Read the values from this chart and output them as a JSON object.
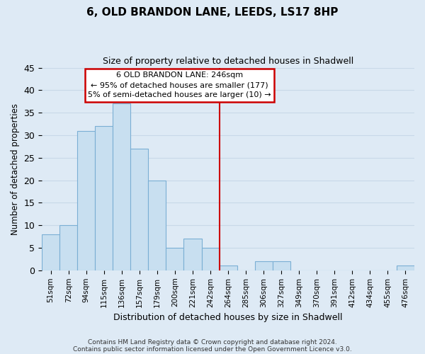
{
  "title": "6, OLD BRANDON LANE, LEEDS, LS17 8HP",
  "subtitle": "Size of property relative to detached houses in Shadwell",
  "xlabel": "Distribution of detached houses by size in Shadwell",
  "ylabel": "Number of detached properties",
  "bar_labels": [
    "51sqm",
    "72sqm",
    "94sqm",
    "115sqm",
    "136sqm",
    "157sqm",
    "179sqm",
    "200sqm",
    "221sqm",
    "242sqm",
    "264sqm",
    "285sqm",
    "306sqm",
    "327sqm",
    "349sqm",
    "370sqm",
    "391sqm",
    "412sqm",
    "434sqm",
    "455sqm",
    "476sqm"
  ],
  "bar_values": [
    8,
    10,
    31,
    32,
    37,
    27,
    20,
    5,
    7,
    5,
    1,
    0,
    2,
    2,
    0,
    0,
    0,
    0,
    0,
    0,
    1
  ],
  "bar_color": "#c8dff0",
  "bar_edge_color": "#7bafd4",
  "vline_x": 9.5,
  "vline_color": "#cc0000",
  "ylim": [
    0,
    45
  ],
  "yticks": [
    0,
    5,
    10,
    15,
    20,
    25,
    30,
    35,
    40,
    45
  ],
  "annotation_title": "6 OLD BRANDON LANE: 246sqm",
  "annotation_line1": "← 95% of detached houses are smaller (177)",
  "annotation_line2": "5% of semi-detached houses are larger (10) →",
  "annotation_box_color": "#ffffff",
  "annotation_box_edge": "#cc0000",
  "footer_line1": "Contains HM Land Registry data © Crown copyright and database right 2024.",
  "footer_line2": "Contains public sector information licensed under the Open Government Licence v3.0.",
  "background_color": "#deeaf5",
  "grid_color": "#c8d8e8"
}
